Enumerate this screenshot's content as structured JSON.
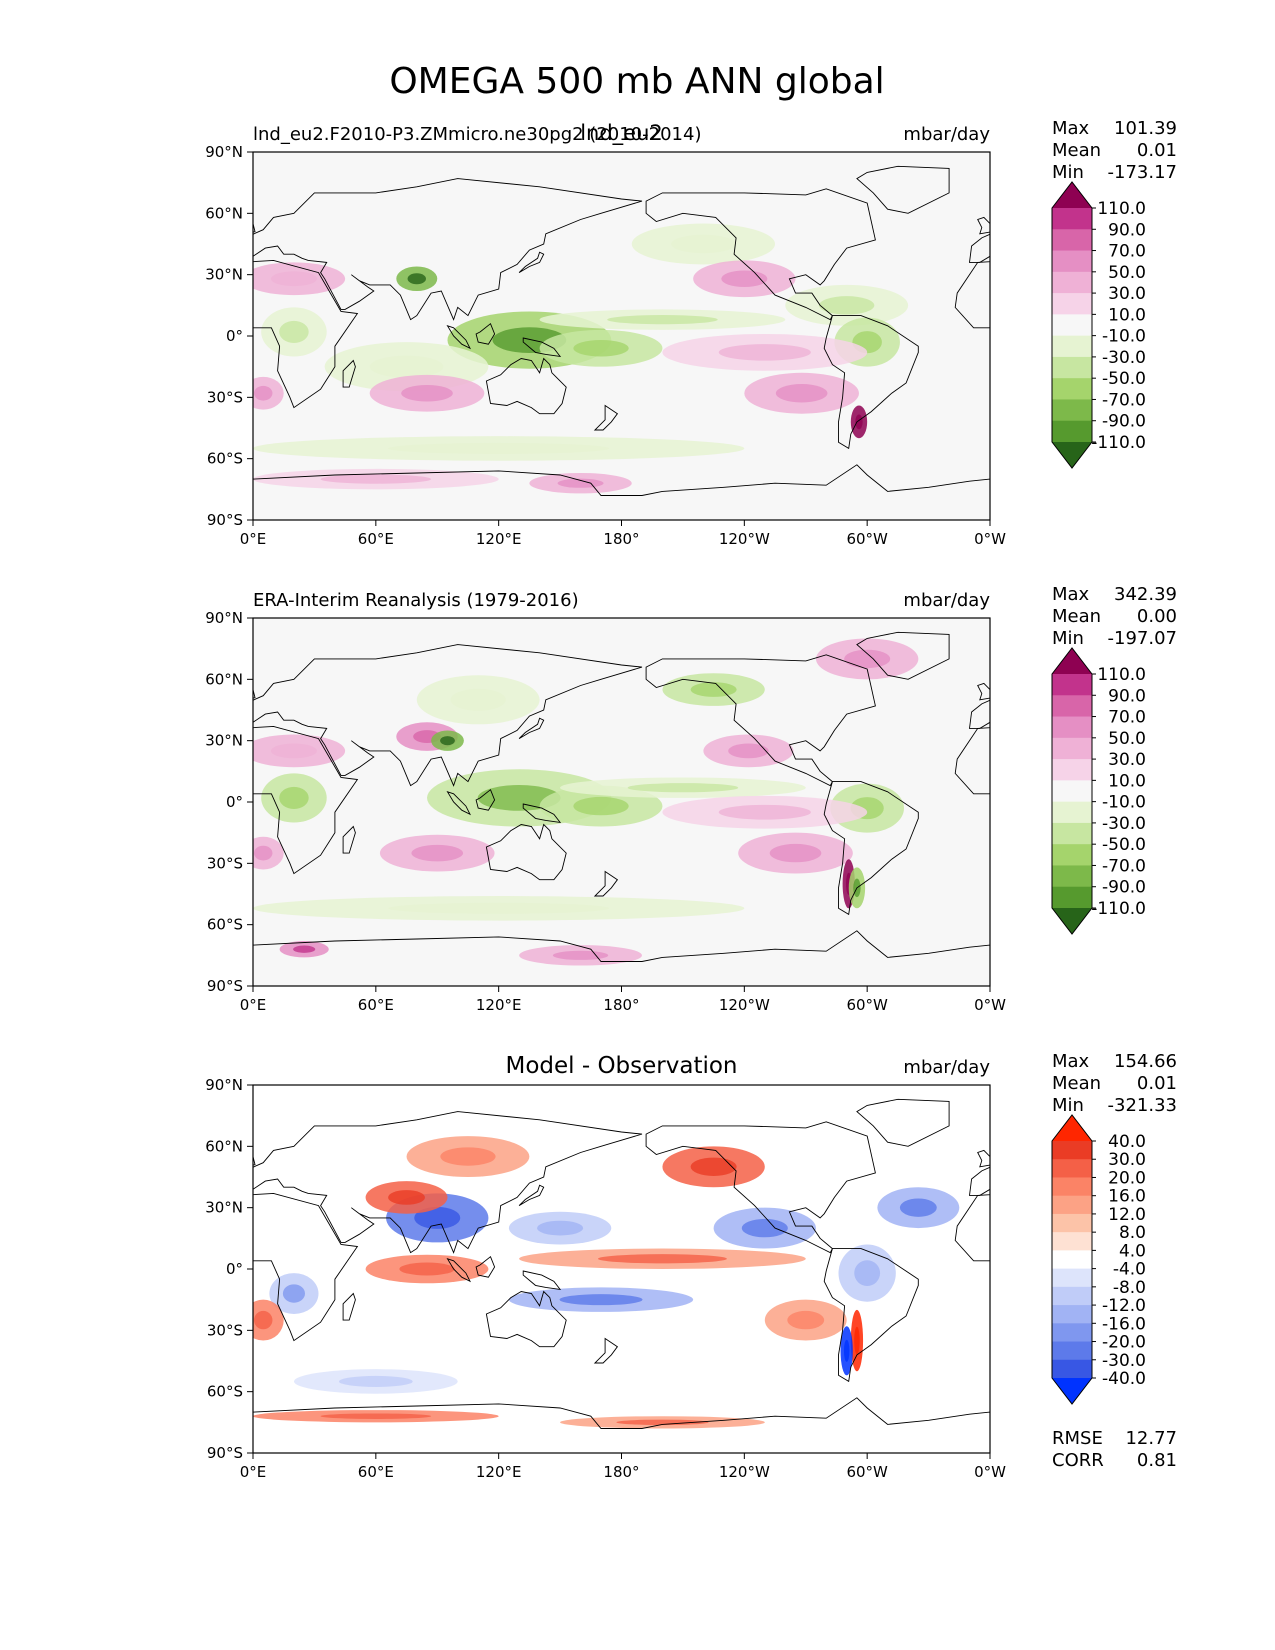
{
  "chart_data": {
    "title": "OMEGA 500 mb ANN global",
    "x_ticks": [
      "0°E",
      "60°E",
      "120°E",
      "180°",
      "120°W",
      "60°W",
      "0°W"
    ],
    "y_ticks": [
      "90°N",
      "60°N",
      "30°N",
      "0°",
      "30°S",
      "60°S",
      "90°S"
    ],
    "xlim": [
      0,
      360
    ],
    "ylim": [
      -90,
      90
    ],
    "colors": {
      "div_pos": [
        "#f6d3e8",
        "#efb1d6",
        "#e58fc4",
        "#d865a9",
        "#c2338c",
        "#8e0152"
      ],
      "div_neg": [
        "#e6f3d2",
        "#c7e6a1",
        "#a5d46c",
        "#7db94a",
        "#569a2e",
        "#276419"
      ],
      "div_mid": "#f7f7f7",
      "diff_pos": [
        "#fee1d3",
        "#fcc3a8",
        "#fca285",
        "#fb8366",
        "#f46047",
        "#ea3c25",
        "#ff2600"
      ],
      "diff_neg": [
        "#dde4fb",
        "#c0ccf8",
        "#a1b3f4",
        "#7f97ef",
        "#5d7aea",
        "#3857e4",
        "#0033ff"
      ],
      "diff_mid": "#ffffff",
      "coast": "#000000"
    },
    "panels": [
      {
        "type": "heatmap",
        "title_left": "lnd_eu2.F2010-P3.ZMmicro.ne30pg2 (2010-2014)",
        "title_center": "lnd_eu2",
        "units": "mbar/day",
        "stats": {
          "labels": [
            "Max",
            "Mean",
            "Min"
          ],
          "values": [
            "101.39",
            "0.01",
            "-173.17"
          ]
        },
        "colorbar_ticks": [
          "110.0",
          "90.0",
          "70.0",
          "50.0",
          "30.0",
          "10.0",
          "-10.0",
          "-30.0",
          "-50.0",
          "-70.0",
          "-90.0",
          "-110.0"
        ],
        "colormap": "div",
        "features": [
          {
            "lon": 135,
            "lat": -2,
            "rlon": 40,
            "rlat": 14,
            "v": -65
          },
          {
            "lon": 170,
            "lat": -6,
            "rlon": 30,
            "rlat": 9,
            "v": -45
          },
          {
            "lon": 200,
            "lat": 8,
            "rlon": 60,
            "rlat": 5,
            "v": -25
          },
          {
            "lon": 290,
            "lat": 15,
            "rlon": 30,
            "rlat": 10,
            "v": -25
          },
          {
            "lon": 300,
            "lat": -3,
            "rlon": 16,
            "rlat": 12,
            "v": -40
          },
          {
            "lon": 20,
            "lat": 2,
            "rlon": 16,
            "rlat": 12,
            "v": -30
          },
          {
            "lon": 80,
            "lat": 28,
            "rlon": 10,
            "rlat": 6,
            "v": -85
          },
          {
            "lon": 120,
            "lat": -55,
            "rlon": 120,
            "rlat": 6,
            "v": -20
          },
          {
            "lon": 220,
            "lat": 45,
            "rlon": 35,
            "rlat": 10,
            "v": -18
          },
          {
            "lon": 75,
            "lat": -15,
            "rlon": 40,
            "rlat": 12,
            "v": -15
          },
          {
            "lon": 5,
            "lat": -28,
            "rlon": 10,
            "rlat": 8,
            "v": 45
          },
          {
            "lon": 85,
            "lat": -28,
            "rlon": 28,
            "rlat": 9,
            "v": 35
          },
          {
            "lon": 268,
            "lat": -28,
            "rlon": 28,
            "rlat": 10,
            "v": 40
          },
          {
            "lon": 240,
            "lat": 28,
            "rlon": 25,
            "rlat": 9,
            "v": 35
          },
          {
            "lon": 20,
            "lat": 28,
            "rlon": 25,
            "rlat": 8,
            "v": 30
          },
          {
            "lon": 250,
            "lat": -8,
            "rlon": 50,
            "rlat": 9,
            "v": 20
          },
          {
            "lon": 60,
            "lat": -70,
            "rlon": 60,
            "rlat": 5,
            "v": 25
          },
          {
            "lon": 160,
            "lat": -72,
            "rlon": 25,
            "rlat": 5,
            "v": 45
          },
          {
            "lon": 296,
            "lat": -42,
            "rlon": 4,
            "rlat": 8,
            "v": 120
          }
        ]
      },
      {
        "type": "heatmap",
        "title_left": "ERA-Interim Reanalysis (1979-2016)",
        "title_center": "",
        "units": "mbar/day",
        "stats": {
          "labels": [
            "Max",
            "Mean",
            "Min"
          ],
          "values": [
            "342.39",
            "0.00",
            "-197.07"
          ]
        },
        "colorbar_ticks": [
          "110.0",
          "90.0",
          "70.0",
          "50.0",
          "30.0",
          "10.0",
          "-10.0",
          "-30.0",
          "-50.0",
          "-70.0",
          "-90.0",
          "-110.0"
        ],
        "colormap": "div",
        "features": [
          {
            "lon": 130,
            "lat": 2,
            "rlon": 45,
            "rlat": 14,
            "v": -50
          },
          {
            "lon": 170,
            "lat": -2,
            "rlon": 30,
            "rlat": 10,
            "v": -45
          },
          {
            "lon": 210,
            "lat": 7,
            "rlon": 60,
            "rlat": 5,
            "v": -30
          },
          {
            "lon": 300,
            "lat": -3,
            "rlon": 18,
            "rlat": 12,
            "v": -40
          },
          {
            "lon": 20,
            "lat": 2,
            "rlon": 16,
            "rlat": 12,
            "v": -35
          },
          {
            "lon": 225,
            "lat": 55,
            "rlon": 25,
            "rlat": 8,
            "v": -40
          },
          {
            "lon": 110,
            "lat": 50,
            "rlon": 30,
            "rlat": 12,
            "v": -15
          },
          {
            "lon": 120,
            "lat": -52,
            "rlon": 120,
            "rlat": 6,
            "v": -20
          },
          {
            "lon": 85,
            "lat": 32,
            "rlon": 15,
            "rlat": 7,
            "v": 50
          },
          {
            "lon": 95,
            "lat": 30,
            "rlon": 8,
            "rlat": 5,
            "v": -80
          },
          {
            "lon": 5,
            "lat": -25,
            "rlon": 10,
            "rlat": 8,
            "v": 45
          },
          {
            "lon": 90,
            "lat": -25,
            "rlon": 28,
            "rlat": 9,
            "v": 35
          },
          {
            "lon": 265,
            "lat": -25,
            "rlon": 28,
            "rlat": 10,
            "v": 40
          },
          {
            "lon": 242,
            "lat": 25,
            "rlon": 22,
            "rlat": 8,
            "v": 35
          },
          {
            "lon": 20,
            "lat": 25,
            "rlon": 25,
            "rlat": 8,
            "v": 30
          },
          {
            "lon": 250,
            "lat": -5,
            "rlon": 50,
            "rlat": 8,
            "v": 20
          },
          {
            "lon": 300,
            "lat": 70,
            "rlon": 25,
            "rlat": 10,
            "v": 35
          },
          {
            "lon": 291,
            "lat": -40,
            "rlon": 3,
            "rlat": 12,
            "v": 130
          },
          {
            "lon": 295,
            "lat": -42,
            "rlon": 4,
            "rlat": 10,
            "v": -70
          },
          {
            "lon": 160,
            "lat": -75,
            "rlon": 30,
            "rlat": 5,
            "v": 45
          },
          {
            "lon": 25,
            "lat": -72,
            "rlon": 12,
            "rlat": 4,
            "v": 60
          }
        ]
      },
      {
        "type": "heatmap",
        "title_left": "",
        "title_center": "Model - Observation",
        "units": "mbar/day",
        "stats": {
          "labels": [
            "Max",
            "Mean",
            "Min"
          ],
          "values": [
            "154.66",
            "0.01",
            "-321.33"
          ]
        },
        "colorbar_ticks": [
          "40.0",
          "30.0",
          "20.0",
          "16.0",
          "12.0",
          "8.0",
          "4.0",
          "-4.0",
          "-8.0",
          "-12.0",
          "-16.0",
          "-20.0",
          "-30.0",
          "-40.0"
        ],
        "colormap": "diff",
        "metrics": {
          "labels": [
            "RMSE",
            "CORR"
          ],
          "values": [
            "12.77",
            "0.81"
          ]
        },
        "features": [
          {
            "lon": 90,
            "lat": 25,
            "rlon": 25,
            "rlat": 12,
            "v": -22
          },
          {
            "lon": 75,
            "lat": 35,
            "rlon": 20,
            "rlat": 8,
            "v": 25
          },
          {
            "lon": 85,
            "lat": 0,
            "rlon": 30,
            "rlat": 7,
            "v": 18
          },
          {
            "lon": 200,
            "lat": 5,
            "rlon": 70,
            "rlat": 5,
            "v": 15
          },
          {
            "lon": 170,
            "lat": -15,
            "rlon": 45,
            "rlat": 6,
            "v": -14
          },
          {
            "lon": 150,
            "lat": 20,
            "rlon": 25,
            "rlat": 8,
            "v": -10
          },
          {
            "lon": 250,
            "lat": 20,
            "rlon": 25,
            "rlat": 10,
            "v": -14
          },
          {
            "lon": 300,
            "lat": -2,
            "rlon": 14,
            "rlat": 14,
            "v": -10
          },
          {
            "lon": 20,
            "lat": -12,
            "rlon": 12,
            "rlat": 10,
            "v": -12
          },
          {
            "lon": 325,
            "lat": 30,
            "rlon": 20,
            "rlat": 10,
            "v": -14
          },
          {
            "lon": 5,
            "lat": -25,
            "rlon": 10,
            "rlat": 10,
            "v": 18
          },
          {
            "lon": 270,
            "lat": -25,
            "rlon": 20,
            "rlat": 10,
            "v": 12
          },
          {
            "lon": 295,
            "lat": -35,
            "rlon": 3,
            "rlat": 15,
            "v": 42
          },
          {
            "lon": 290,
            "lat": -40,
            "rlon": 3,
            "rlat": 12,
            "v": -42
          },
          {
            "lon": 225,
            "lat": 50,
            "rlon": 25,
            "rlat": 10,
            "v": 22
          },
          {
            "lon": 60,
            "lat": -72,
            "rlon": 60,
            "rlat": 3,
            "v": 18
          },
          {
            "lon": 200,
            "lat": -75,
            "rlon": 50,
            "rlat": 3,
            "v": 15
          },
          {
            "lon": 60,
            "lat": -55,
            "rlon": 40,
            "rlat": 6,
            "v": -8
          },
          {
            "lon": 105,
            "lat": 55,
            "rlon": 30,
            "rlat": 10,
            "v": 12
          }
        ]
      }
    ]
  }
}
